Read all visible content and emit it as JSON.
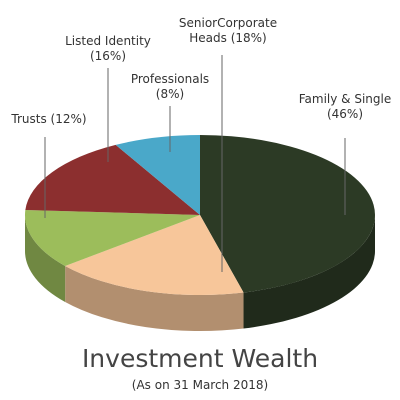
{
  "chart_data": {
    "type": "pie3d",
    "title": "Investment Wealth",
    "subtitle": "(As on 31 March 2018)",
    "categories": [
      "Family & Single",
      "SeniorCorporate Heads",
      "Trusts",
      "Listed Identity",
      "Professionals"
    ],
    "values": [
      46,
      18,
      12,
      16,
      8
    ],
    "value_labels": [
      "(46%)",
      "(18%)",
      "(12%)",
      "(16%)",
      "(8%)"
    ],
    "colors": [
      "#2c3a25",
      "#f7c69a",
      "#9cbd5b",
      "#8c2f2f",
      "#4aa8c9"
    ]
  }
}
